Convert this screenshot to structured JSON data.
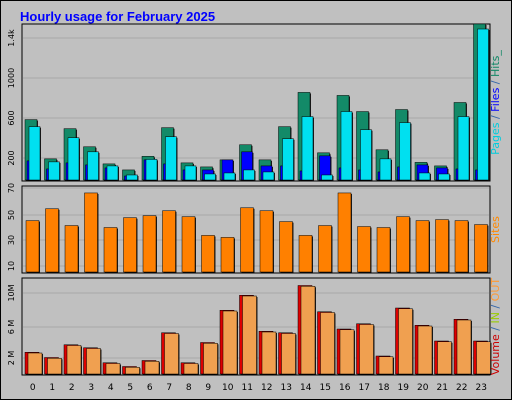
{
  "title": "Hourly usage for February 2025",
  "chart_data": [
    {
      "type": "bar",
      "categories": [
        "0",
        "1",
        "2",
        "3",
        "4",
        "5",
        "6",
        "7",
        "8",
        "9",
        "10",
        "11",
        "12",
        "13",
        "14",
        "15",
        "16",
        "17",
        "18",
        "19",
        "20",
        "21",
        "22",
        "23"
      ],
      "yticks": [
        "200",
        "600",
        "1000",
        "1.4k"
      ],
      "ylabel_parts": [
        {
          "text": "Pages",
          "color": "#00ccdd"
        },
        {
          "text": " / ",
          "color": "#3366aa"
        },
        {
          "text": "Files",
          "color": "#0000ff"
        },
        {
          "text": " / ",
          "color": "#3366aa"
        },
        {
          "text": "Hits_",
          "color": "#118866"
        }
      ],
      "ylim": [
        0,
        1520
      ],
      "series": [
        {
          "name": "Hits",
          "color": "#138a68",
          "values": [
            600,
            210,
            510,
            330,
            160,
            100,
            235,
            520,
            170,
            130,
            200,
            350,
            200,
            530,
            870,
            270,
            840,
            680,
            300,
            700,
            175,
            140,
            770,
            1550
          ]
        },
        {
          "name": "Files",
          "color": "#0000ff",
          "values": [
            190,
            110,
            170,
            150,
            120,
            40,
            200,
            160,
            100,
            100,
            200,
            280,
            140,
            140,
            90,
            240,
            120,
            100,
            80,
            130,
            150,
            120,
            110,
            100
          ]
        },
        {
          "name": "Pages",
          "color": "#00e0f0",
          "values": [
            530,
            180,
            420,
            280,
            140,
            50,
            205,
            430,
            140,
            60,
            70,
            100,
            80,
            410,
            630,
            50,
            680,
            500,
            210,
            570,
            70,
            60,
            630,
            1500
          ]
        }
      ]
    },
    {
      "type": "bar",
      "categories": [
        "0",
        "1",
        "2",
        "3",
        "4",
        "5",
        "6",
        "7",
        "8",
        "9",
        "10",
        "11",
        "12",
        "13",
        "14",
        "15",
        "16",
        "17",
        "18",
        "19",
        "20",
        "21",
        "22",
        "23"
      ],
      "yticks": [
        "10",
        "30",
        "50",
        "70"
      ],
      "ylabel_parts": [
        {
          "text": "Sites",
          "color": "#ff8800"
        }
      ],
      "ylim": [
        0,
        84
      ],
      "series": [
        {
          "name": "Sites",
          "color": "#ff8000",
          "values": [
            52,
            64,
            47,
            80,
            45,
            55,
            57,
            62,
            56,
            37,
            35,
            65,
            62,
            51,
            37,
            47,
            80,
            46,
            45,
            56,
            52,
            53,
            52,
            48
          ]
        }
      ]
    },
    {
      "type": "bar",
      "categories": [
        "0",
        "1",
        "2",
        "3",
        "4",
        "5",
        "6",
        "7",
        "8",
        "9",
        "10",
        "11",
        "12",
        "13",
        "14",
        "15",
        "16",
        "17",
        "18",
        "19",
        "20",
        "21",
        "22",
        "23"
      ],
      "yticks": [
        "2 M",
        "6 M",
        "10M"
      ],
      "ylabel_parts": [
        {
          "text": "Volume",
          "color": "#cc0000"
        },
        {
          "text": " / ",
          "color": "#3366aa"
        },
        {
          "text": "IN",
          "color": "#99cc00"
        },
        {
          "text": " / ",
          "color": "#3366aa"
        },
        {
          "text": "OUT",
          "color": "#ff9933"
        }
      ],
      "ylim": [
        0,
        12.4
      ],
      "series": [
        {
          "name": "Volume",
          "color": "#dd0000",
          "values": [
            2.9,
            2.2,
            3.9,
            3.5,
            1.5,
            1.0,
            1.8,
            5.5,
            1.5,
            4.2,
            8.5,
            10.5,
            5.7,
            5.5,
            11.8,
            8.3,
            6.0,
            6.7,
            2.4,
            8.8,
            6.5,
            4.4,
            7.3,
            4.4
          ]
        },
        {
          "name": "OUT",
          "color": "#f0a050",
          "values": [
            2.8,
            2.1,
            3.8,
            3.4,
            1.4,
            0.9,
            1.7,
            5.4,
            1.4,
            4.1,
            8.4,
            10.4,
            5.6,
            5.4,
            11.7,
            8.2,
            5.9,
            6.6,
            2.3,
            8.7,
            6.4,
            4.3,
            7.2,
            4.3
          ]
        }
      ]
    }
  ],
  "colors": {
    "background": "#c0c0c0",
    "plot_area": "#c0c0c0",
    "title": "#0000ff"
  }
}
